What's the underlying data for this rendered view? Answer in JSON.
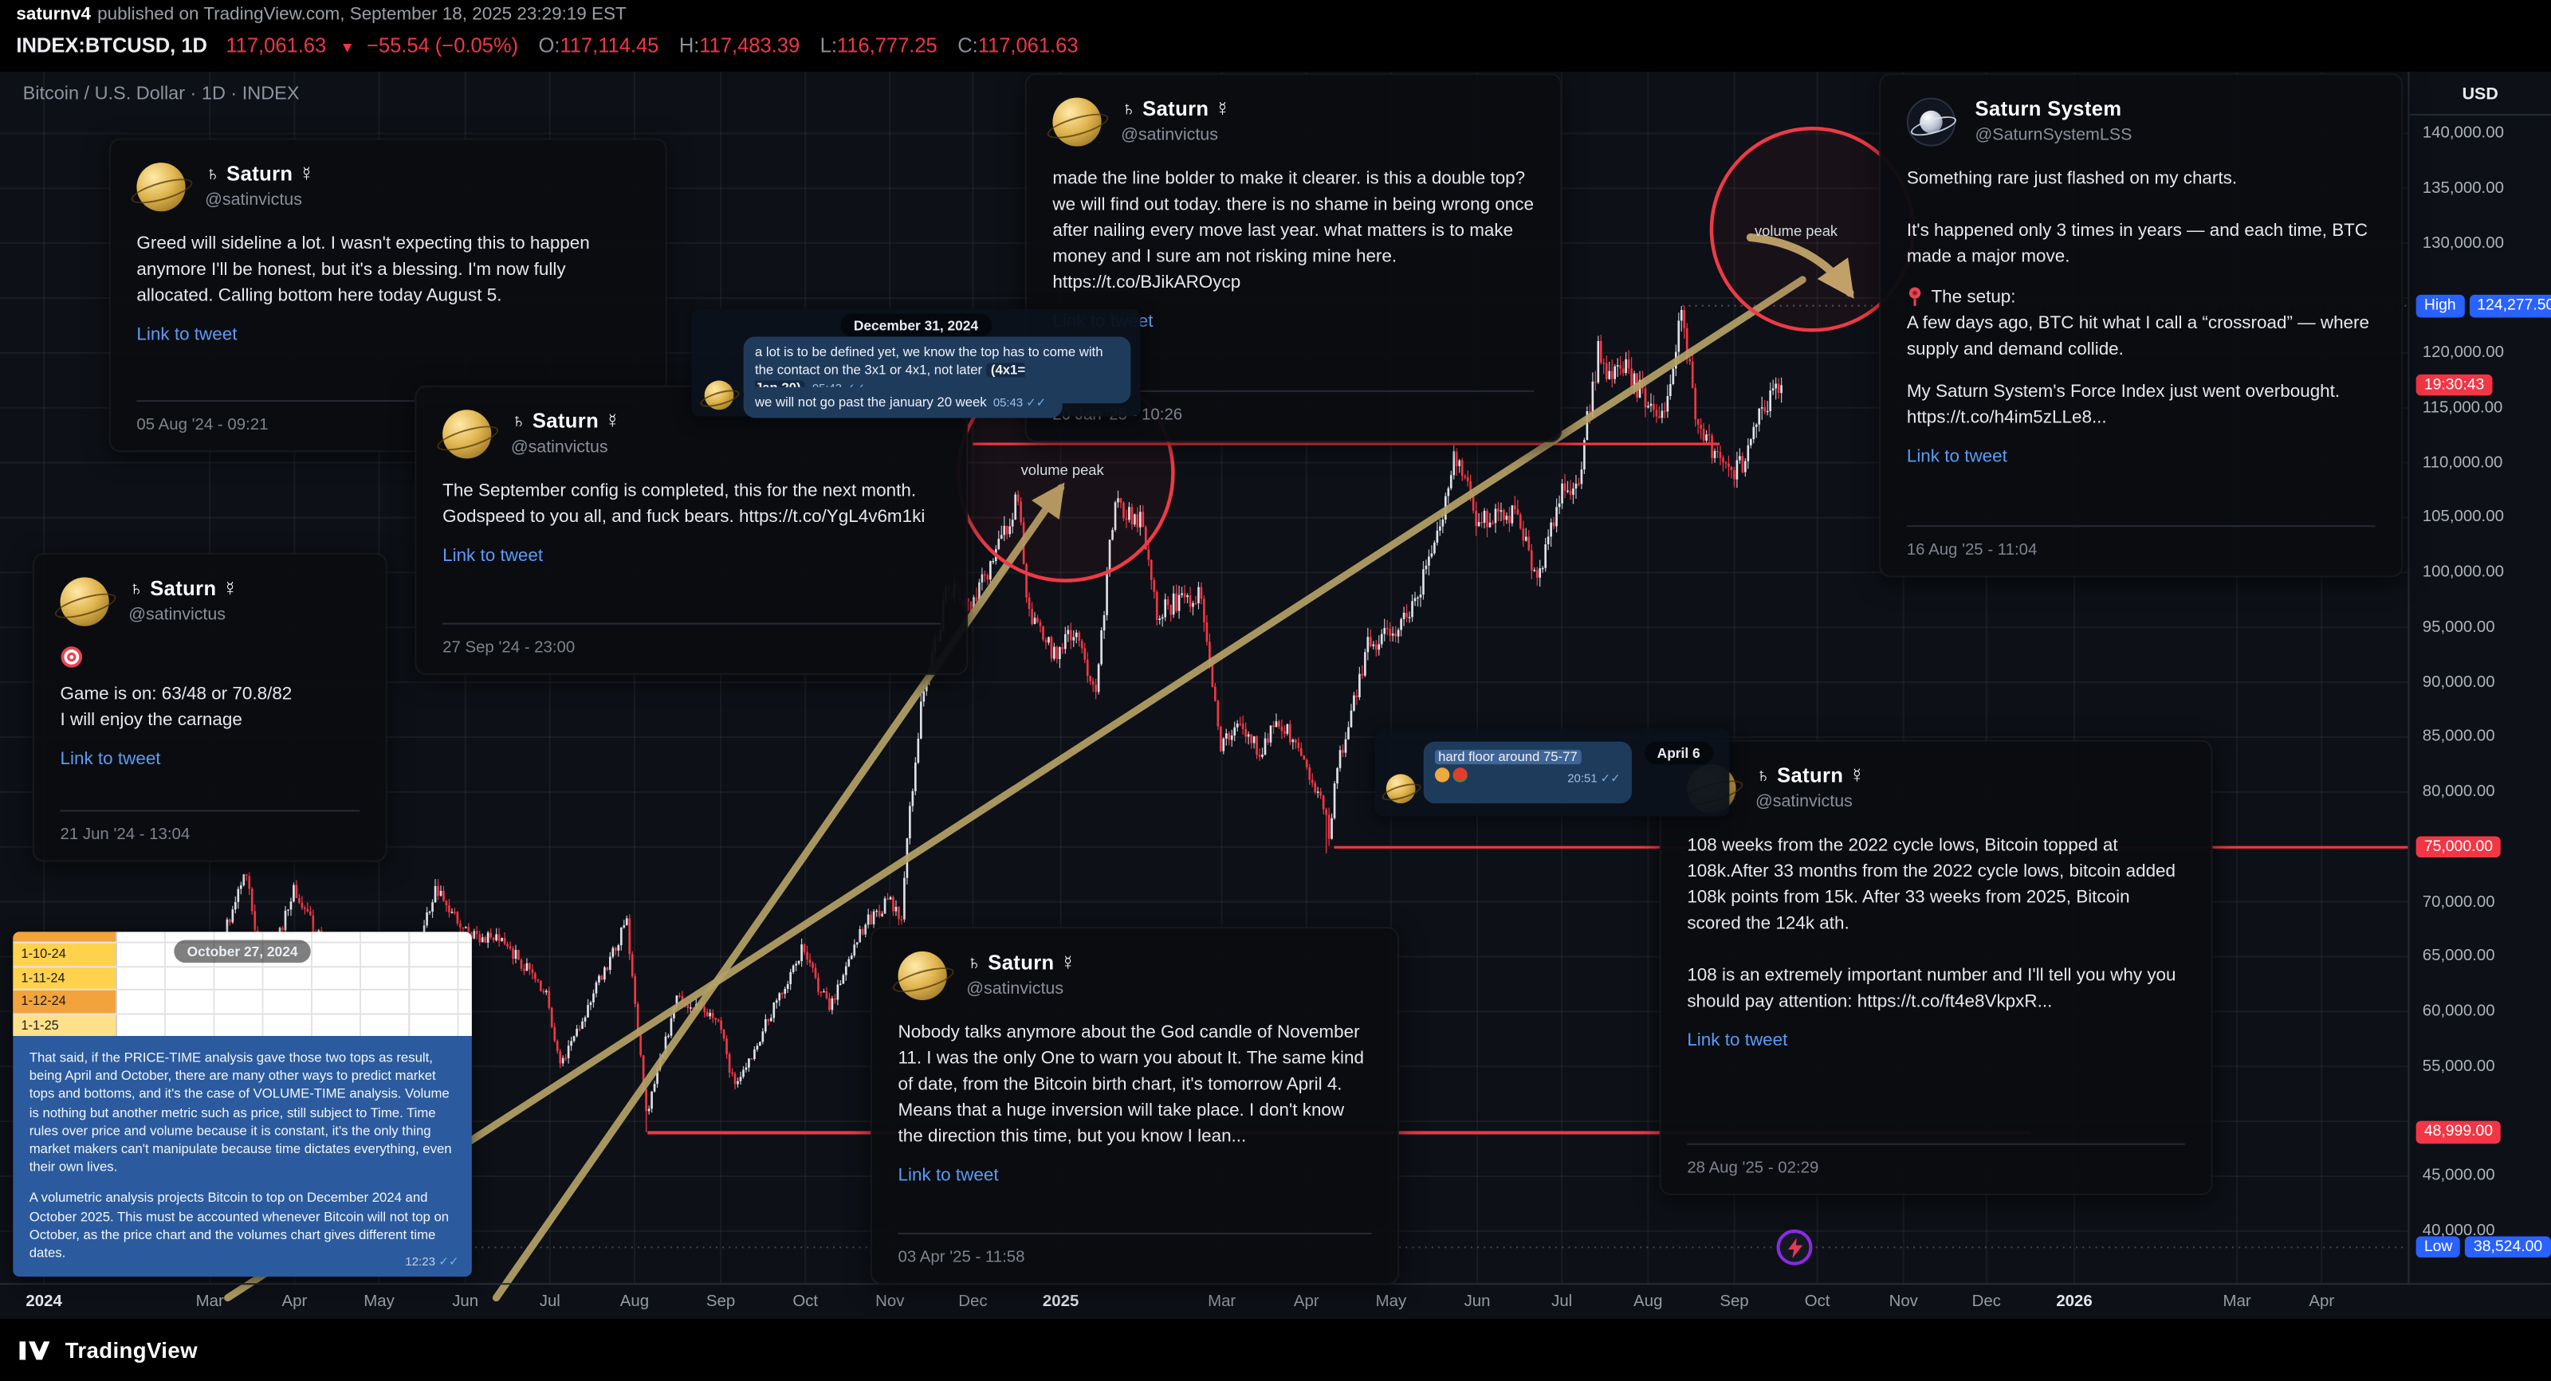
{
  "meta_bar": {
    "author": "saturnv4",
    "published": "published on TradingView.com, September 18, 2025 23:29:19 EST"
  },
  "symbol_bar": {
    "symbol": "INDEX:BTCUSD, 1D",
    "last": "117,061.63",
    "direction": "▼",
    "change": "−55.54 (−0.05%)",
    "o_label": "O:",
    "o_value": "117,114.45",
    "h_label": "H:",
    "h_value": "117,483.39",
    "l_label": "L:",
    "l_value": "116,777.25",
    "c_label": "C:",
    "c_value": "117,061.63"
  },
  "chart": {
    "title": "Bitcoin / U.S. Dollar · 1D · INDEX"
  },
  "annotations": {
    "volume_peak_1": "volume peak",
    "volume_peak_2": "volume peak"
  },
  "icons": {
    "card3_emoji": "dart-target-icon",
    "card5_setup_emoji": "round-pushpin-icon",
    "apr6_emojis": [
      "backhand-index-pointing-left-icon",
      "tomato-icon"
    ],
    "chart_sticker": "lightning-bolt-icon"
  },
  "price_axis": {
    "currency": "USD",
    "gridlines": [
      {
        "p": 140000,
        "label": "140,000.00"
      },
      {
        "p": 135000,
        "label": "135,000.00"
      },
      {
        "p": 130000,
        "label": "130,000.00"
      },
      {
        "p": 120000,
        "label": "120,000.00"
      },
      {
        "p": 115000,
        "label": "115,000.00"
      },
      {
        "p": 110000,
        "label": "110,000.00"
      },
      {
        "p": 105000,
        "label": "105,000.00"
      },
      {
        "p": 100000,
        "label": "100,000.00"
      },
      {
        "p": 95000,
        "label": "95,000.00"
      },
      {
        "p": 90000,
        "label": "90,000.00"
      },
      {
        "p": 85000,
        "label": "85,000.00"
      },
      {
        "p": 80000,
        "label": "80,000.00"
      },
      {
        "p": 70000,
        "label": "70,000.00"
      },
      {
        "p": 65000,
        "label": "65,000.00"
      },
      {
        "p": 60000,
        "label": "60,000.00"
      },
      {
        "p": 55000,
        "label": "55,000.00"
      },
      {
        "p": 45000,
        "label": "45,000.00"
      },
      {
        "p": 40000,
        "label": "40,000.00"
      }
    ],
    "badges": {
      "high_tag": "High",
      "high_value": "124,277.50",
      "high_price": 124277.5,
      "countdown": "19:30:43",
      "countdown_price": 117061.63,
      "support1": "75,000.00",
      "support1_price": 75000,
      "support2": "48,999.00",
      "support2_price": 48999,
      "low_tag": "Low",
      "low_value": "38,524.00",
      "low_price": 38524
    }
  },
  "time_axis": {
    "ticks": [
      {
        "x": 27,
        "label": "2024",
        "major": true
      },
      {
        "x": 129,
        "label": "Mar"
      },
      {
        "x": 181,
        "label": "Apr"
      },
      {
        "x": 233,
        "label": "May"
      },
      {
        "x": 286,
        "label": "Jun"
      },
      {
        "x": 338,
        "label": "Jul"
      },
      {
        "x": 390,
        "label": "Aug"
      },
      {
        "x": 443,
        "label": "Sep"
      },
      {
        "x": 495,
        "label": "Oct"
      },
      {
        "x": 547,
        "label": "Nov"
      },
      {
        "x": 598,
        "label": "Dec"
      },
      {
        "x": 652,
        "label": "2025",
        "major": true
      },
      {
        "x": 751,
        "label": "Mar"
      },
      {
        "x": 803,
        "label": "Apr"
      },
      {
        "x": 855,
        "label": "May"
      },
      {
        "x": 908,
        "label": "Jun"
      },
      {
        "x": 960,
        "label": "Jul"
      },
      {
        "x": 1013,
        "label": "Aug"
      },
      {
        "x": 1066,
        "label": "Sep"
      },
      {
        "x": 1117,
        "label": "Oct"
      },
      {
        "x": 1170,
        "label": "Nov"
      },
      {
        "x": 1221,
        "label": "Dec"
      },
      {
        "x": 1275,
        "label": "2026",
        "major": true
      },
      {
        "x": 1375,
        "label": "Mar"
      },
      {
        "x": 1427,
        "label": "Apr"
      }
    ]
  },
  "tweets": [
    {
      "name": "♄ Saturn ☿",
      "handle": "@satinvictus",
      "body": "Greed will sideline a lot. I wasn't expecting this to happen anymore I'll be honest, but it's a blessing. I'm now fully allocated. Calling bottom here today August 5.",
      "link": "Link to tweet",
      "date": "05 Aug '24 - 09:21"
    },
    {
      "name": "♄ Saturn ☿",
      "handle": "@satinvictus",
      "body": "The September config is completed, this for the next month. Godspeed to you all, and fuck bears. https://t.co/YgL4v6m1ki",
      "link": "Link to tweet",
      "date": "27 Sep '24 - 23:00"
    },
    {
      "name": "♄ Saturn ☿",
      "handle": "@satinvictus",
      "body": "Game is on: 63/48 or 70.8/82\nI will enjoy the carnage",
      "link": "Link to tweet",
      "date": "21 Jun '24 - 13:04"
    },
    {
      "name": "♄ Saturn ☿",
      "handle": "@satinvictus",
      "body": "made the line bolder to make it clearer. is this a double top? we will find out today. there is no shame in being wrong once after nailing every move last year. what matters is to make money and I sure am not risking mine here. https://t.co/BJikAROycp",
      "link": "Link to tweet",
      "date": "20 Jan '25 - 10:26"
    },
    {
      "name": "Saturn System",
      "handle": "@SaturnSystemLSS",
      "body_top": "Something rare just flashed on my charts.\n\nIt's happened only 3 times in years — and each time, BTC made a major move.",
      "setup_label": "The setup:",
      "body_setup": "A few days ago, BTC hit what I call a “crossroad” — where supply and demand collide.",
      "body_bottom": "My Saturn System's Force Index just went overbought. https://t.co/h4im5zLLe8...",
      "link": "Link to tweet",
      "date": "16 Aug '25 - 11:04"
    },
    {
      "name": "♄ Saturn ☿",
      "handle": "@satinvictus",
      "body": "Nobody talks anymore about the God candle of November 11. I was the only One to warn you about It. The same kind of date, from the Bitcoin birth chart, it's tomorrow April 4. Means that a huge inversion will take place. I don't know the direction this time, but you know I lean...",
      "link": "Link to tweet",
      "date": "03 Apr '25 - 11:58"
    },
    {
      "name": "♄ Saturn ☿",
      "handle": "@satinvictus",
      "body": "108 weeks from the 2022 cycle lows, Bitcoin topped at 108k.After 33 months from the 2022 cycle lows, bitcoin added 108k points from 15k. After 33 weeks from 2025, Bitcoin scored the 124k ath.\n\n108 is an extremely important number and I'll tell you why you should pay attention: https://t.co/ft4e8VkpxR...",
      "link": "Link to tweet",
      "date": "28 Aug '25 - 02:29"
    }
  ],
  "chats": {
    "dec31": {
      "date_pill": "December 31, 2024",
      "msg1": "a lot is to be defined yet, we know the top has to come with the contact on the 3x1 or 4x1, not later ",
      "msg1_highlight": "(4x1= Jan.20)",
      "msg1_time": "05:43",
      "msg2": "we will not go past the january 20 week",
      "msg2_time": "05:43",
      "checks": "✓✓"
    },
    "apr6": {
      "date_pill": "April 6",
      "msg": "hard floor around 75-77",
      "time": "20:51",
      "checks": "✓✓"
    },
    "oct27": {
      "date_pill": "October 27, 2024",
      "rows": [
        "1-10-24",
        "1-11-24",
        "1-12-24",
        "1-1-25"
      ],
      "caption_p1": "That said, if the PRICE-TIME analysis gave those two tops as result, being April and October, there are many other ways to predict market tops and bottoms, and it's the case of VOLUME-TIME analysis. Volume is nothing but another metric such as price, still subject to Time. Time rules over price and volume because it is constant, it's the only thing market makers can't manipulate because time dictates everything, even their own lives.",
      "caption_p2": "A volumetric analysis projects Bitcoin to top on December 2024 and October 2025. This must be accounted whenever Bitcoin will not top on October, as the price chart and the volumes chart gives different time dates.",
      "time": "12:23",
      "checks": "✓✓"
    }
  },
  "footer": {
    "brand": "TradingView"
  },
  "chart_data": {
    "type": "candlestick",
    "title": "Bitcoin / U.S. Dollar · 1D · INDEX",
    "symbol": "INDEX:BTCUSD",
    "timeframe": "1D",
    "x_start": "2024-01-01",
    "x_end_visible": "2026-04",
    "y_range": [
      38524,
      140000
    ],
    "grid": true,
    "price_scale": "right",
    "high": 124277.5,
    "low": 38524,
    "last_close": 117061.63,
    "key_levels": [
      124277.5,
      117061.63,
      75000,
      48999,
      38524
    ],
    "volume_peak_markers": [
      "early Jan 2025",
      "Oct 2025 (projected)"
    ],
    "anchors_note": "[day offset from 2024-01-01, approx close USD]",
    "anchors": [
      [
        0,
        44200
      ],
      [
        10,
        46600
      ],
      [
        22,
        38900
      ],
      [
        31,
        42600
      ],
      [
        45,
        52000
      ],
      [
        59,
        62400
      ],
      [
        73,
        73100
      ],
      [
        79,
        61900
      ],
      [
        90,
        71200
      ],
      [
        105,
        63800
      ],
      [
        120,
        60600
      ],
      [
        125,
        58200
      ],
      [
        141,
        71000
      ],
      [
        151,
        67500
      ],
      [
        166,
        66200
      ],
      [
        181,
        61800
      ],
      [
        186,
        55100
      ],
      [
        210,
        68100
      ],
      [
        217,
        50500
      ],
      [
        228,
        61200
      ],
      [
        243,
        59100
      ],
      [
        249,
        52900
      ],
      [
        273,
        65600
      ],
      [
        283,
        60300
      ],
      [
        294,
        67400
      ],
      [
        304,
        70100
      ],
      [
        309,
        68300
      ],
      [
        311,
        75600
      ],
      [
        316,
        88000
      ],
      [
        326,
        98900
      ],
      [
        334,
        96500
      ],
      [
        342,
        101200
      ],
      [
        351,
        106700
      ],
      [
        355,
        95800
      ],
      [
        364,
        92600
      ],
      [
        371,
        94500
      ],
      [
        379,
        89500
      ],
      [
        385,
        104500
      ],
      [
        386,
        106100
      ],
      [
        396,
        104600
      ],
      [
        401,
        96600
      ],
      [
        417,
        98200
      ],
      [
        424,
        84300
      ],
      [
        431,
        86000
      ],
      [
        438,
        83700
      ],
      [
        445,
        86800
      ],
      [
        455,
        82400
      ],
      [
        461,
        78400
      ],
      [
        463,
        76300
      ],
      [
        466,
        82100
      ],
      [
        477,
        93400
      ],
      [
        485,
        94200
      ],
      [
        493,
        96900
      ],
      [
        503,
        103800
      ],
      [
        508,
        110800
      ],
      [
        512,
        108900
      ],
      [
        516,
        104600
      ],
      [
        524,
        105700
      ],
      [
        531,
        105200
      ],
      [
        538,
        99200
      ],
      [
        546,
        107100
      ],
      [
        553,
        108900
      ],
      [
        560,
        119900
      ],
      [
        565,
        117500
      ],
      [
        569,
        118600
      ],
      [
        577,
        115700
      ],
      [
        582,
        113200
      ],
      [
        590,
        123300
      ],
      [
        596,
        112900
      ],
      [
        601,
        111000
      ],
      [
        608,
        108400
      ],
      [
        614,
        110900
      ],
      [
        620,
        115400
      ],
      [
        626,
        117061.63
      ]
    ]
  }
}
